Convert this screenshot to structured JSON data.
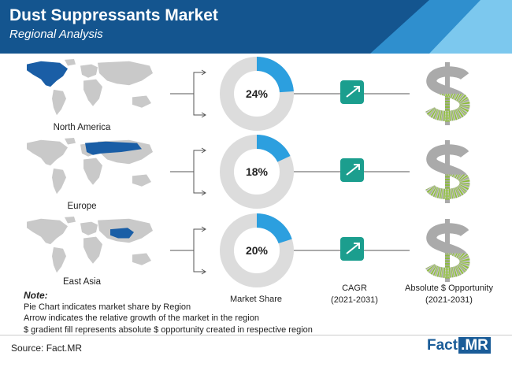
{
  "header": {
    "title": "Dust Suppressants Market",
    "subtitle": "Regional Analysis",
    "colors": {
      "dark": "#14558f",
      "mid": "#2f8fce",
      "light": "#7cc8ee"
    }
  },
  "chart_data": {
    "type": "pie",
    "series_label": "Market Share",
    "categories": [
      "North America",
      "Europe",
      "East Asia"
    ],
    "values": [
      24,
      18,
      20
    ],
    "value_labels": [
      "24%",
      "18%",
      "20%"
    ],
    "colors": {
      "share": "#2c9fdf",
      "remainder": "#dcdcdc",
      "map_base": "#c9c9c9",
      "map_highlight": "#1a5ea6",
      "cagr_box": "#1b9e8e",
      "dollar": "#aaaaaa",
      "dollar_fill": "#8dbb3d"
    },
    "cagr_label": "CAGR",
    "cagr_period": "(2021-2031)",
    "opportunity_label": "Absolute $ Opportunity",
    "opportunity_period": "(2021-2031)",
    "dollar_fill_fraction": [
      0.5,
      0.45,
      0.45
    ]
  },
  "note": {
    "title": "Note:",
    "lines": [
      "Pie Chart indicates market share by Region",
      "Arrow indicates the relative growth of the market in the region",
      "$ gradient fill represents absolute $ opportunity created in respective region"
    ]
  },
  "footer": {
    "source": "Source: Fact.MR",
    "logo_main": "Fact",
    "logo_suffix": ".MR"
  }
}
